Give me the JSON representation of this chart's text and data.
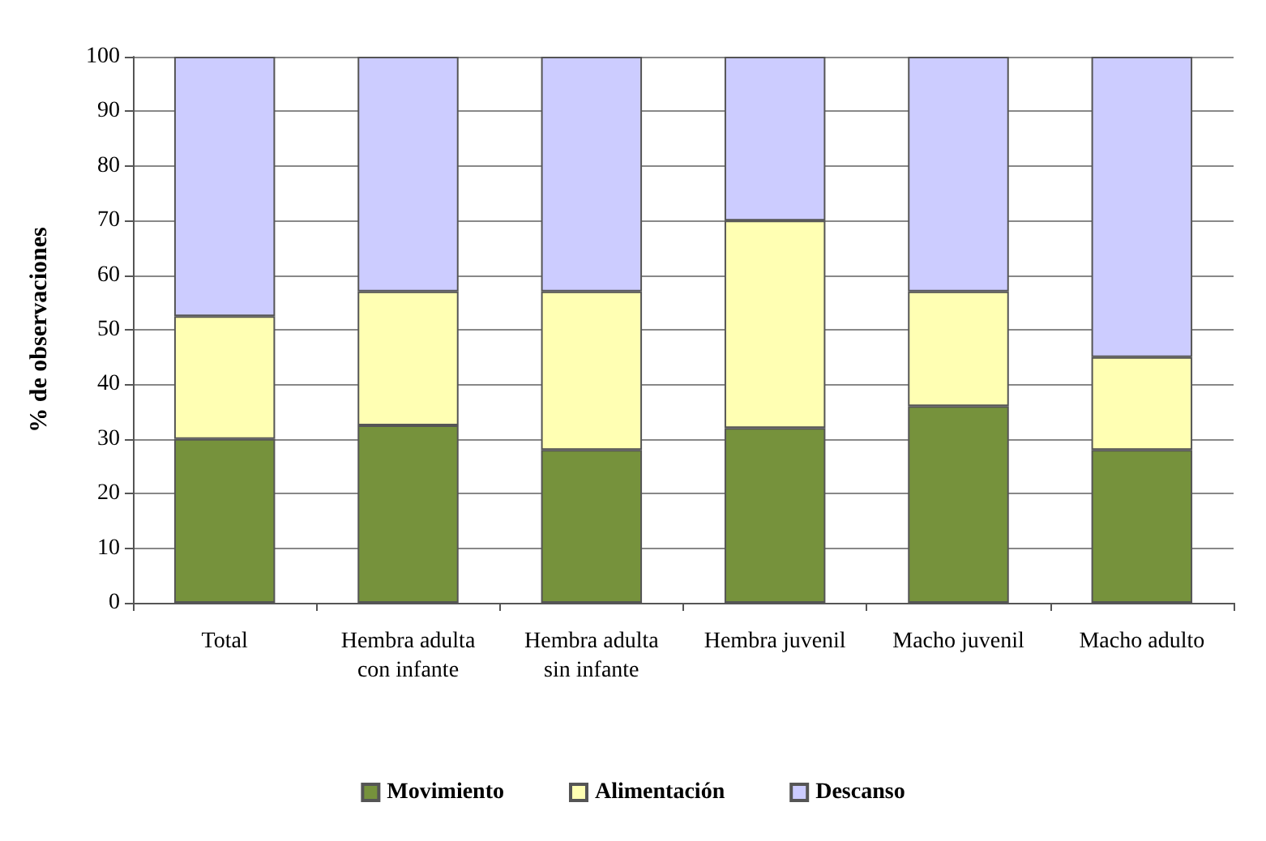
{
  "chart_data": {
    "type": "bar",
    "stacked": true,
    "ylabel": "% de observaciones",
    "categories": [
      "Total",
      "Hembra adulta\ncon infante",
      "Hembra adulta\nsin infante",
      "Hembra juvenil",
      "Macho juvenil",
      "Macho adulto"
    ],
    "series": [
      {
        "name": "Movimiento",
        "color": "#76923c",
        "values": [
          30,
          32.5,
          28,
          32,
          36,
          28
        ]
      },
      {
        "name": "Alimentación",
        "color": "#ffffb3",
        "values": [
          22.5,
          24.5,
          29,
          38,
          21,
          17
        ]
      },
      {
        "name": "Descanso",
        "color": "#ccccff",
        "values": [
          47.5,
          43,
          43,
          30,
          43,
          55
        ]
      }
    ],
    "ylim": [
      0,
      100
    ],
    "yticks": [
      0,
      10,
      20,
      30,
      40,
      50,
      60,
      70,
      80,
      90,
      100
    ],
    "grid": "y",
    "legend": "bottom"
  }
}
